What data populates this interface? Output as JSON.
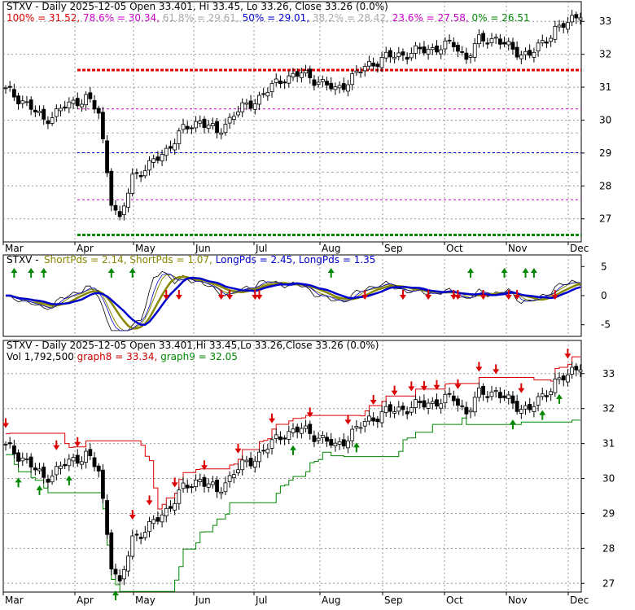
{
  "chart_data": [
    {
      "type": "candlestick",
      "title": "STXV - Daily 2025-12-05 Open 33.401, Hi 33.45, Lo 33.26, Close 33.26 (0.0%)",
      "fib_levels": [
        {
          "label": "100% = 31.52",
          "value": 31.52,
          "color": "#dd0000"
        },
        {
          "label": "78.6% = 30.34",
          "value": 30.34,
          "color": "#cc00cc"
        },
        {
          "label": "61.8% = 29.61",
          "value": 29.61,
          "color": "#aaaaaa"
        },
        {
          "label": "50% = 29.01",
          "value": 29.01,
          "color": "#0000cc"
        },
        {
          "label": "38.2% = 28.42",
          "value": 28.42,
          "color": "#aaaaaa"
        },
        {
          "label": "23.6% = 27.58",
          "value": 27.58,
          "color": "#cc00cc"
        },
        {
          "label": "0% = 26.51",
          "value": 26.51,
          "color": "#008800"
        }
      ],
      "y_ticks": [
        "27",
        "28",
        "29",
        "30",
        "31",
        "32",
        "33"
      ],
      "ylim": [
        26.3,
        33.6
      ],
      "x_ticks": [
        "Mar",
        "Apr",
        "May",
        "Jun",
        "Jul",
        "Aug",
        "Sep",
        "Oct",
        "Nov",
        "Dec"
      ]
    },
    {
      "type": "line",
      "title": "STXV - ShortPds = 2.14, ShortPds = 1.07, LongPds = 2.45, LongPds = 1.35",
      "legend": [
        {
          "label": "STXV - ",
          "color": "#000000"
        },
        {
          "label": "ShortPds = 2.14, ",
          "color": "#888800"
        },
        {
          "label": "ShortPds = 1.07, ",
          "color": "#888800"
        },
        {
          "label": "LongPds = 2.45, ",
          "color": "#0000cc"
        },
        {
          "label": "LongPds = 1.35",
          "color": "#0000cc"
        }
      ],
      "y_ticks": [
        "5",
        "0",
        "-5"
      ],
      "ylim": [
        -7,
        7
      ]
    },
    {
      "type": "candlestick",
      "title": "STXV - Daily 2025-12-05 Open 33.401,Hi 33.45,Lo 33.26,Close 33.26 (0.0%)",
      "legend": [
        {
          "label": "Vol 1,792,500 ",
          "color": "#000000"
        },
        {
          "label": "graph8 = 33.34, ",
          "color": "#cc0000"
        },
        {
          "label": "graph9 = 32.05",
          "color": "#008800"
        }
      ],
      "y_ticks": [
        "27",
        "28",
        "29",
        "30",
        "31",
        "32",
        "33"
      ],
      "ylim": [
        26.75,
        33.95
      ],
      "x_ticks": [
        "Mar",
        "Apr",
        "May",
        "Jun",
        "Jul",
        "Aug",
        "Sep",
        "Oct",
        "Nov",
        "Dec"
      ]
    }
  ]
}
